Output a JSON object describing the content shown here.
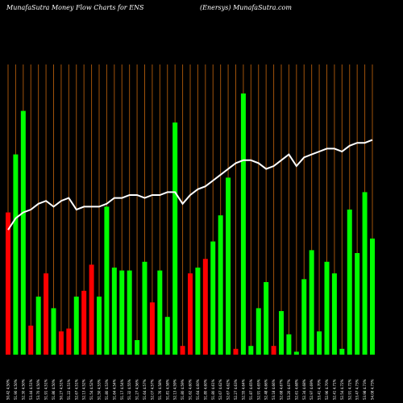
{
  "header": {
    "title_left": "MunafaSutra  Money Flow  Charts for ENS",
    "title_right": "(Enersys) MunafaSutra.com"
  },
  "chart_data": {
    "type": "bar",
    "colors": {
      "up": "#00ff00",
      "down": "#ff0000",
      "line": "#ffffff",
      "grid": "#a0520a",
      "background": "#000000"
    },
    "bar_scale": [
      0,
      100
    ],
    "line_scale": [
      0,
      100
    ],
    "categories": [
      "50.42 4.50%",
      "51.90 4.50%",
      "52.30 4.50%",
      "53.44 4.51%",
      "53.70 4.50%",
      "51.91 4.51%",
      "51.86 4.50%",
      "50.27 4.51%",
      "51.22 4.51%",
      "52.67 4.51%",
      "52.13 4.52%",
      "51.54 4.52%",
      "51.50 4.53%",
      "51.80 4.53%",
      "51.64 4.54%",
      "51.17 4.54%",
      "51.32 4.55%",
      "51.27 4.56%",
      "51.64 4.57%",
      "52.07 4.57%",
      "51.76 4.58%",
      "51.81 4.58%",
      "52.13 4.59%",
      "51.80 4.59%",
      "51.62 4.60%",
      "51.64 4.60%",
      "51.80 4.60%",
      "51.80 4.61%",
      "52.67 4.62%",
      "52.67 4.62%",
      "52.27 4.63%",
      "52.55 4.64%",
      "51.87 4.65%",
      "52.91 4.65%",
      "52.48 4.66%",
      "53.18 4.66%",
      "52.68 4.67%",
      "53.20 4.67%",
      "52.61 4.68%",
      "52.34 4.68%",
      "52.97 4.69%",
      "53.41 4.70%",
      "52.96 4.70%",
      "52.41 4.71%",
      "52.54 4.72%",
      "52.91 4.72%",
      "53.47 4.73%",
      "53.98 4.73%",
      "54.08 4.73%"
    ],
    "series": [
      {
        "values": [
          49,
          69,
          84,
          10,
          20,
          28,
          16,
          8,
          9,
          20,
          22,
          31,
          20,
          51,
          30,
          29,
          29,
          5,
          32,
          18,
          29,
          13,
          80,
          3,
          28,
          30,
          33,
          39,
          48,
          61,
          2,
          90,
          3,
          16,
          25,
          3,
          15,
          7,
          1,
          26,
          36,
          8,
          32,
          28,
          2,
          50,
          35,
          56,
          40
        ]
      },
      {
        "values": [
          1,
          54,
          52,
          37,
          36,
          40,
          34,
          32,
          40,
          47,
          40,
          55,
          53,
          0,
          44,
          7,
          39,
          22,
          23,
          7,
          34,
          0,
          57,
          23,
          35,
          41,
          45,
          43,
          49,
          51,
          4,
          45,
          9,
          18,
          15,
          5,
          19,
          10,
          5,
          12,
          25,
          8,
          7,
          28,
          2,
          53,
          35,
          56,
          40
        ]
      }
    ],
    "bar_direction": [
      "down",
      "up",
      "up",
      "down",
      "up",
      "down",
      "up",
      "down",
      "down",
      "up",
      "down",
      "down",
      "up",
      "up",
      "up",
      "up",
      "up",
      "up",
      "up",
      "down",
      "up",
      "up",
      "up",
      "down",
      "down",
      "up",
      "down",
      "up",
      "up",
      "up",
      "down",
      "up",
      "up",
      "up",
      "up",
      "down",
      "up",
      "up",
      "up",
      "up",
      "up",
      "up",
      "up",
      "up",
      "up",
      "up",
      "up",
      "up",
      "up"
    ],
    "line_values": [
      43,
      47,
      49,
      50,
      52,
      53,
      51,
      53,
      54,
      50,
      51,
      51,
      51,
      52,
      54,
      54,
      55,
      55,
      54,
      55,
      55,
      56,
      56,
      52,
      55,
      57,
      58,
      60,
      62,
      64,
      66,
      67,
      67,
      66,
      64,
      65,
      67,
      69,
      65,
      68,
      69,
      70,
      71,
      71,
      70,
      72,
      73,
      73,
      74
    ]
  }
}
